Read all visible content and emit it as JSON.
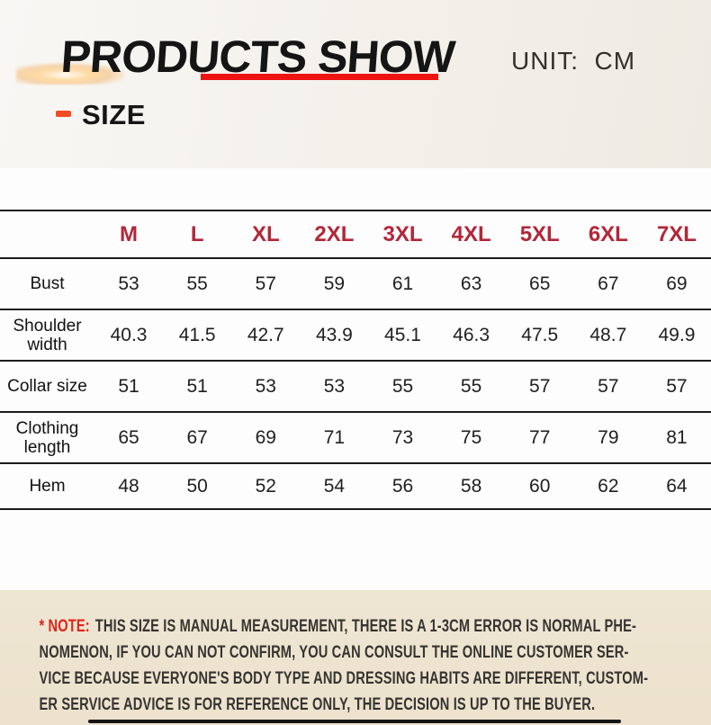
{
  "header": {
    "title": "PRODUCTS SHOW",
    "unit_label": "UNIT:  CM",
    "size_label": "SIZE"
  },
  "table": {
    "sizes": [
      "M",
      "L",
      "XL",
      "2XL",
      "3XL",
      "4XL",
      "5XL",
      "6XL",
      "7XL"
    ],
    "rows": [
      {
        "label": "Bust",
        "values": [
          "53",
          "55",
          "57",
          "59",
          "61",
          "63",
          "65",
          "67",
          "69"
        ]
      },
      {
        "label": "Shoulder width",
        "values": [
          "40.3",
          "41.5",
          "42.7",
          "43.9",
          "45.1",
          "46.3",
          "47.5",
          "48.7",
          "49.9"
        ]
      },
      {
        "label": "Collar size",
        "values": [
          "51",
          "51",
          "53",
          "53",
          "55",
          "55",
          "57",
          "57",
          "57"
        ]
      },
      {
        "label": "Clothing length",
        "values": [
          "65",
          "67",
          "69",
          "71",
          "73",
          "75",
          "77",
          "79",
          "81"
        ]
      },
      {
        "label": "Hem",
        "values": [
          "48",
          "50",
          "52",
          "54",
          "56",
          "58",
          "60",
          "62",
          "64"
        ]
      }
    ]
  },
  "note": {
    "prefix": "* NOTE:",
    "lines": [
      "THIS SIZE IS MANUAL MEASUREMENT, THERE IS A 1-3CM ERROR IS NORMAL PHE-",
      "NOMENON, IF YOU CAN NOT CONFIRM, YOU CAN CONSULT THE ONLINE CUSTOMER SER-",
      "VICE BECAUSE EVERYONE'S BODY TYPE AND DRESSING HABITS ARE DIFFERENT, CUSTOM-",
      "ER SERVICE ADVICE IS FOR REFERENCE ONLY, THE DECISION IS UP TO THE BUYER."
    ]
  },
  "colors": {
    "accent_red": "#b32639",
    "underline_red": "#ee1411",
    "dash_orange": "#f04b23",
    "note_red": "#e02318",
    "note_bg": "#ece3d0",
    "header_bg": "#f4f2ed",
    "table_bg": "#fdfdfd",
    "line_color": "#1c1c1c"
  }
}
